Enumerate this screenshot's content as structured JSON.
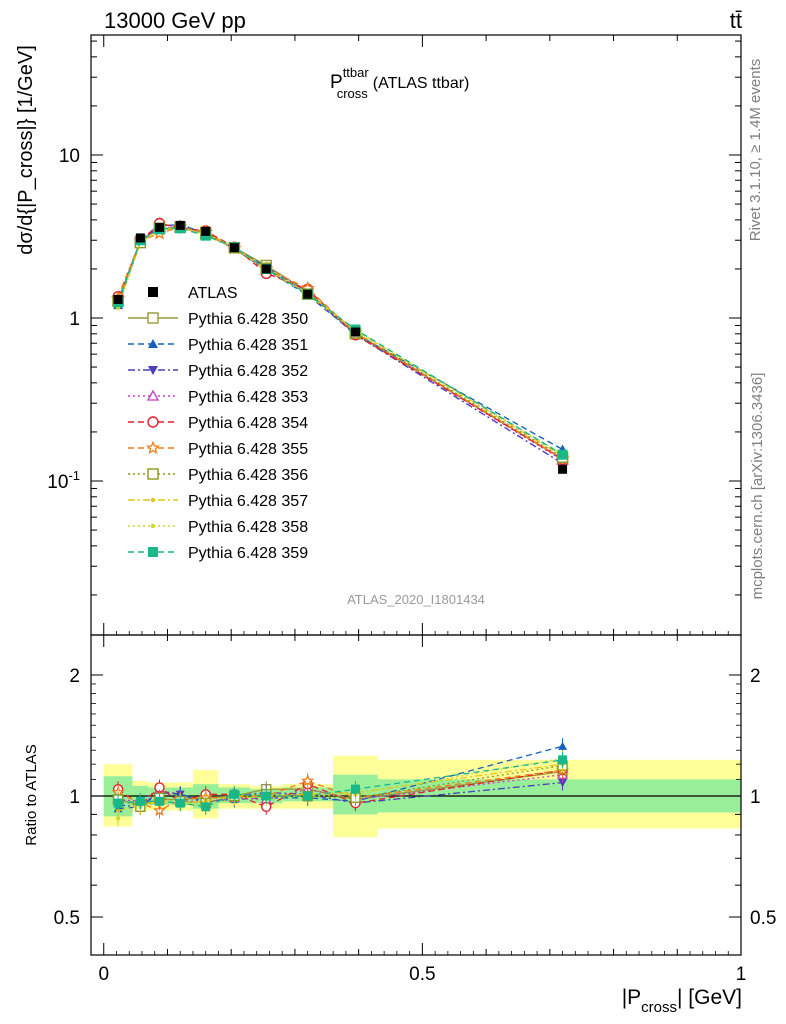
{
  "header": {
    "left": "13000 GeV pp",
    "right": "tt̄"
  },
  "side_labels": {
    "rivet": "Rivet 3.1.10, ≥ 1.4M events",
    "mcplots": "mcplots.cern.ch [arXiv:1306.3436]"
  },
  "watermark": "ATLAS_2020_I1801434",
  "chart_data": [
    {
      "type": "line",
      "title": "P^ttbar_cross (ATLAS ttbar)",
      "title_main": "P",
      "title_sup": "ttbar",
      "title_sub": "cross",
      "title_tail": "(ATLAS ttbar)",
      "ylabel": "dσ/d{|P_cross|} [1/GeV]",
      "xlabel": "|P_cross| [GeV]",
      "yscale": "log",
      "ylim": [
        0.02,
        60
      ],
      "xlim": [
        -0.02,
        1.0
      ],
      "yticks": [
        "10",
        "1",
        "10^-1"
      ],
      "legend_position": "left",
      "x": [
        0.0225,
        0.0575,
        0.0875,
        0.12,
        0.16,
        0.205,
        0.255,
        0.32,
        0.395,
        0.72
      ],
      "series": [
        {
          "name": "ATLAS",
          "color": "#000000",
          "marker": "square-filled",
          "dash": "solid",
          "values": [
            1.3,
            3.1,
            3.6,
            3.7,
            3.4,
            2.7,
            2.0,
            1.4,
            0.82,
            0.118
          ]
        },
        {
          "name": "Pythia 6.428 350",
          "color": "#9a9a3a",
          "marker": "square-open",
          "dash": "solid",
          "values": [
            1.27,
            2.95,
            3.52,
            3.62,
            3.35,
            2.7,
            2.1,
            1.45,
            0.8,
            0.136
          ]
        },
        {
          "name": "Pythia 6.428 351",
          "color": "#1560bd",
          "marker": "triangle-up-filled",
          "dash": "dashed",
          "values": [
            1.2,
            2.9,
            3.65,
            3.75,
            3.3,
            2.65,
            1.98,
            1.38,
            0.8,
            0.156
          ]
        },
        {
          "name": "Pythia 6.428 352",
          "color": "#4b3ebb",
          "marker": "triangle-down-filled",
          "dash": "dashdot",
          "values": [
            1.23,
            2.92,
            3.7,
            3.72,
            3.25,
            2.7,
            2.05,
            1.42,
            0.79,
            0.128
          ]
        },
        {
          "name": "Pythia 6.428 353",
          "color": "#c23ec2",
          "marker": "triangle-up-open",
          "dash": "dotted",
          "values": [
            1.28,
            3.0,
            3.75,
            3.6,
            3.3,
            2.68,
            1.96,
            1.45,
            0.8,
            0.134
          ]
        },
        {
          "name": "Pythia 6.428 354",
          "color": "#e3202c",
          "marker": "circle-open",
          "dash": "dashed",
          "values": [
            1.35,
            2.95,
            3.8,
            3.58,
            3.42,
            2.72,
            1.88,
            1.5,
            0.79,
            0.136
          ]
        },
        {
          "name": "Pythia 6.428 355",
          "color": "#ef7d1a",
          "marker": "star-open",
          "dash": "dashed",
          "values": [
            1.32,
            2.98,
            3.3,
            3.62,
            3.35,
            2.68,
            2.0,
            1.52,
            0.81,
            0.137
          ]
        },
        {
          "name": "Pythia 6.428 356",
          "color": "#8a9a1a",
          "marker": "square-open",
          "dash": "dotted",
          "values": [
            1.27,
            2.9,
            3.55,
            3.6,
            3.28,
            2.7,
            2.02,
            1.4,
            0.81,
            0.14
          ]
        },
        {
          "name": "Pythia 6.428 357",
          "color": "#e3c417",
          "marker": "dot",
          "dash": "dashdot",
          "values": [
            1.2,
            2.95,
            3.5,
            3.55,
            3.3,
            2.7,
            2.0,
            1.42,
            0.84,
            0.142
          ]
        },
        {
          "name": "Pythia 6.428 358",
          "color": "#cfd63a",
          "marker": "dot",
          "dash": "dotted",
          "values": [
            1.15,
            2.9,
            3.45,
            3.58,
            3.2,
            2.68,
            1.98,
            1.4,
            0.83,
            0.146
          ]
        },
        {
          "name": "Pythia 6.428 359",
          "color": "#18b889",
          "marker": "square-filled",
          "dash": "dashed",
          "values": [
            1.25,
            3.0,
            3.5,
            3.55,
            3.2,
            2.72,
            2.0,
            1.4,
            0.85,
            0.145
          ]
        }
      ]
    },
    {
      "type": "line",
      "ylabel": "Ratio to ATLAS",
      "xlabel": "|P_cross| [GeV]",
      "ylim": [
        0.4,
        2.4
      ],
      "xlim": [
        -0.02,
        1.0
      ],
      "yticks": [
        "2",
        "1",
        "0.5"
      ],
      "xticks": [
        "0",
        "0.5",
        "1"
      ],
      "reference": 1,
      "bands": [
        {
          "xlo": 0.0,
          "xhi": 0.045,
          "inner": [
            0.89,
            1.12
          ],
          "outer": [
            0.84,
            1.2
          ]
        },
        {
          "xlo": 0.045,
          "xhi": 0.07,
          "inner": [
            0.95,
            1.06
          ],
          "outer": [
            0.92,
            1.09
          ]
        },
        {
          "xlo": 0.07,
          "xhi": 0.105,
          "inner": [
            0.95,
            1.05
          ],
          "outer": [
            0.92,
            1.08
          ]
        },
        {
          "xlo": 0.105,
          "xhi": 0.14,
          "inner": [
            0.95,
            1.05
          ],
          "outer": [
            0.92,
            1.08
          ]
        },
        {
          "xlo": 0.14,
          "xhi": 0.18,
          "inner": [
            0.93,
            1.07
          ],
          "outer": [
            0.88,
            1.16
          ]
        },
        {
          "xlo": 0.18,
          "xhi": 0.23,
          "inner": [
            0.96,
            1.05
          ],
          "outer": [
            0.93,
            1.07
          ]
        },
        {
          "xlo": 0.23,
          "xhi": 0.28,
          "inner": [
            0.96,
            1.04
          ],
          "outer": [
            0.93,
            1.06
          ]
        },
        {
          "xlo": 0.28,
          "xhi": 0.36,
          "inner": [
            0.97,
            1.05
          ],
          "outer": [
            0.93,
            1.07
          ]
        },
        {
          "xlo": 0.36,
          "xhi": 0.43,
          "inner": [
            0.9,
            1.13
          ],
          "outer": [
            0.79,
            1.26
          ]
        },
        {
          "xlo": 0.43,
          "xhi": 1.0,
          "inner": [
            0.91,
            1.1
          ],
          "outer": [
            0.83,
            1.23
          ]
        }
      ],
      "series": [
        {
          "name": "Pythia 6.428 350",
          "values": [
            0.98,
            0.95,
            0.98,
            0.98,
            0.99,
            1.0,
            1.04,
            1.04,
            0.98,
            1.15
          ]
        },
        {
          "name": "Pythia 6.428 351",
          "values": [
            0.93,
            0.94,
            1.02,
            1.01,
            0.97,
            0.98,
            0.99,
            0.99,
            0.97,
            1.33
          ]
        },
        {
          "name": "Pythia 6.428 352",
          "values": [
            0.95,
            0.94,
            1.03,
            1.01,
            0.96,
            1.0,
            1.02,
            1.01,
            0.96,
            1.08
          ]
        },
        {
          "name": "Pythia 6.428 353",
          "values": [
            0.98,
            0.97,
            1.04,
            0.97,
            0.97,
            0.99,
            0.98,
            1.04,
            0.98,
            1.13
          ]
        },
        {
          "name": "Pythia 6.428 354",
          "values": [
            1.04,
            0.95,
            1.05,
            0.97,
            1.01,
            1.01,
            0.94,
            1.07,
            0.96,
            1.16
          ]
        },
        {
          "name": "Pythia 6.428 355",
          "values": [
            1.02,
            0.96,
            0.92,
            0.98,
            0.99,
            0.99,
            1.0,
            1.09,
            0.99,
            1.16
          ]
        },
        {
          "name": "Pythia 6.428 356",
          "values": [
            0.98,
            0.94,
            0.99,
            0.97,
            0.96,
            1.0,
            1.01,
            1.0,
            0.99,
            1.19
          ]
        },
        {
          "name": "Pythia 6.428 357",
          "values": [
            0.92,
            0.95,
            0.97,
            0.96,
            0.97,
            1.0,
            1.0,
            1.01,
            1.02,
            1.2
          ]
        },
        {
          "name": "Pythia 6.428 358",
          "values": [
            0.88,
            0.94,
            0.96,
            0.97,
            0.94,
            0.99,
            0.99,
            1.0,
            1.01,
            1.24
          ]
        },
        {
          "name": "Pythia 6.428 359",
          "values": [
            0.96,
            0.97,
            0.97,
            0.96,
            0.94,
            1.01,
            1.0,
            1.0,
            1.04,
            1.23
          ]
        }
      ]
    }
  ]
}
